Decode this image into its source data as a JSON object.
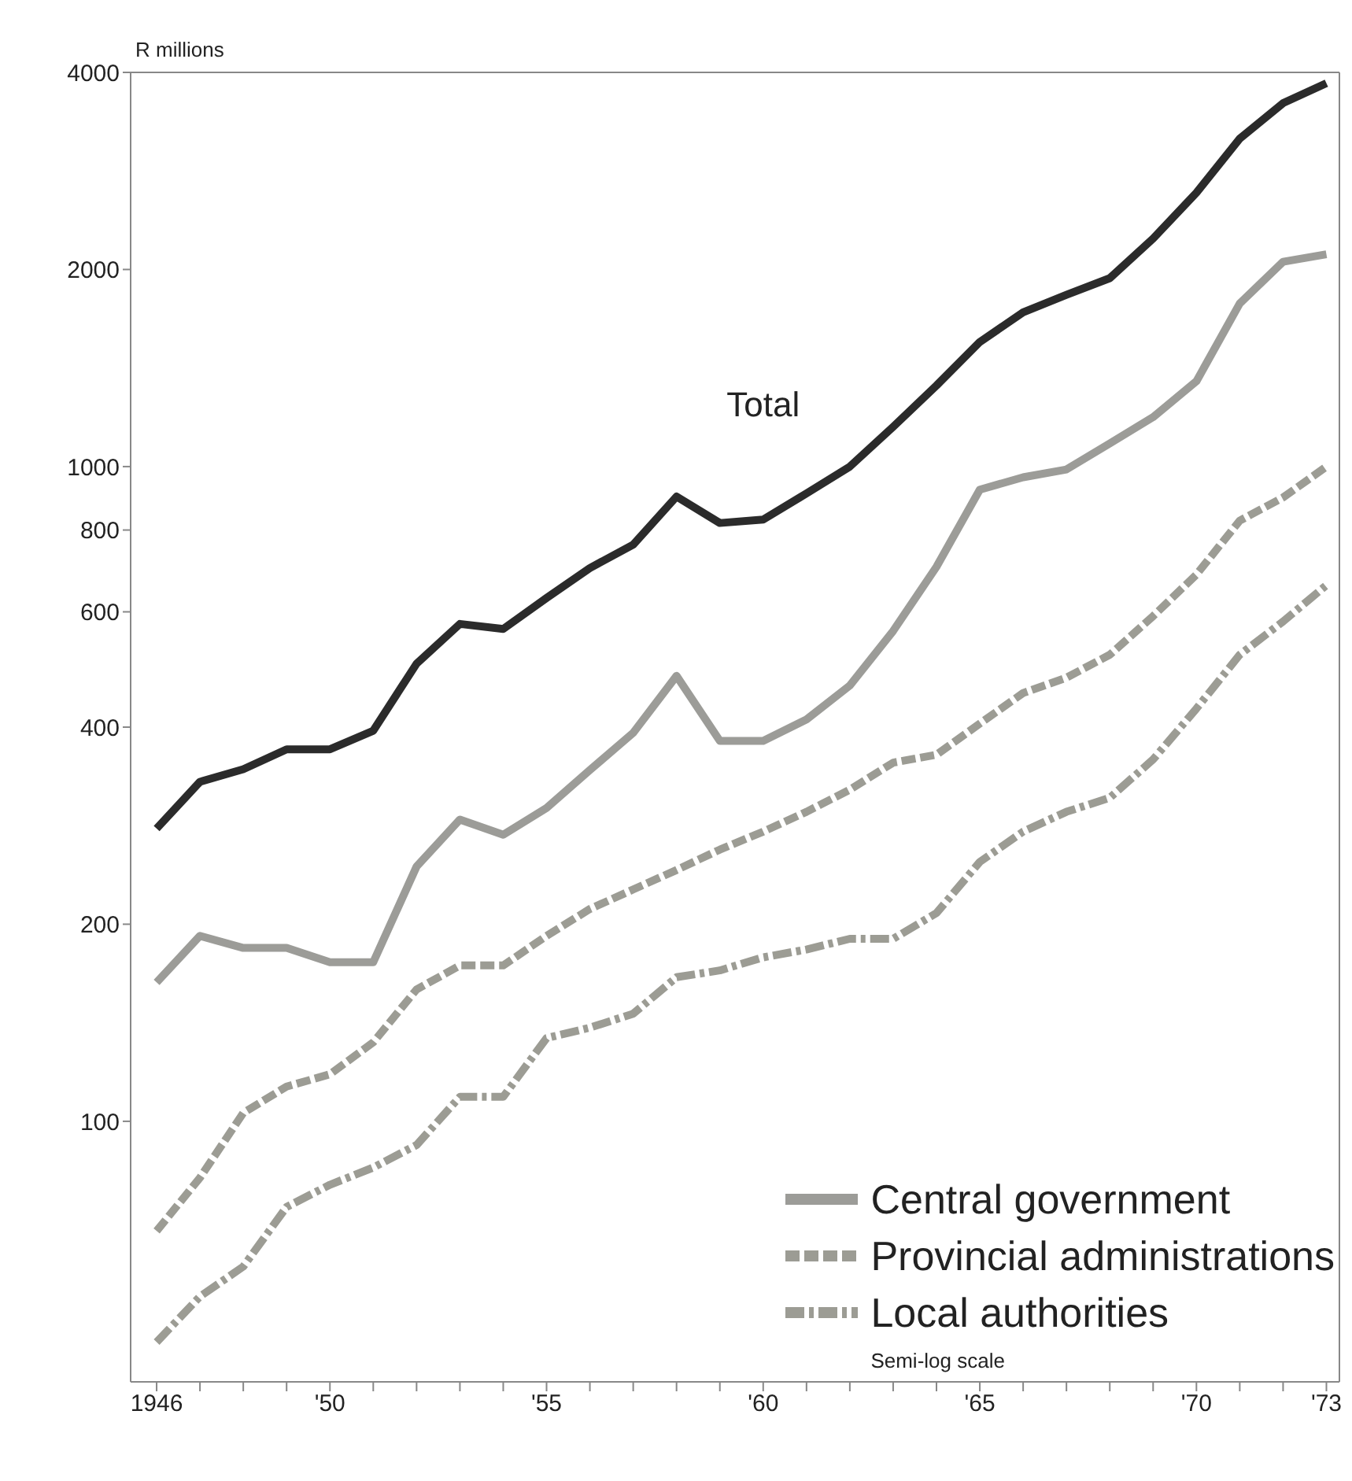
{
  "chart_data": {
    "type": "line",
    "ylabel": "R millions",
    "x": [
      1946,
      1947,
      1948,
      1949,
      1950,
      1951,
      1952,
      1953,
      1954,
      1955,
      1956,
      1957,
      1958,
      1959,
      1960,
      1961,
      1962,
      1963,
      1964,
      1965,
      1966,
      1967,
      1968,
      1969,
      1970,
      1971,
      1972,
      1973
    ],
    "series": [
      {
        "name": "Total",
        "color": "#2b2b2b",
        "line_style": "solid",
        "values": [
          280,
          330,
          345,
          370,
          370,
          395,
          500,
          575,
          565,
          630,
          700,
          760,
          900,
          820,
          830,
          910,
          1000,
          1150,
          1330,
          1550,
          1720,
          1830,
          1940,
          2230,
          2620,
          3170,
          3590,
          3850
        ]
      },
      {
        "name": "Central government",
        "color": "#9c9c98",
        "line_style": "solid",
        "values": [
          163,
          192,
          184,
          184,
          175,
          175,
          245,
          289,
          274,
          301,
          344,
          392,
          479,
          381,
          381,
          411,
          463,
          561,
          703,
          922,
          963,
          990,
          1085,
          1190,
          1350,
          1775,
          2055,
          2110
        ]
      },
      {
        "name": "Provincial administrations",
        "color": "#9c9c94",
        "line_style": "dashed",
        "values": [
          68,
          82,
          103,
          113,
          118,
          132,
          159,
          173,
          173,
          192,
          211,
          226,
          242,
          260,
          277,
          297,
          321,
          353,
          363,
          405,
          451,
          476,
          516,
          591,
          684,
          827,
          897,
          1000
        ]
      },
      {
        "name": "Local authorities",
        "color": "#9c9c94",
        "line_style": "dashdot",
        "values": [
          46,
          54,
          60,
          74,
          80,
          85,
          92,
          109,
          109,
          134,
          139,
          146,
          166,
          170,
          178,
          183,
          190,
          190,
          208,
          249,
          277,
          297,
          312,
          357,
          427,
          516,
          580,
          659
        ]
      }
    ],
    "log": "y",
    "ylim": [
      40,
      4000
    ],
    "yticks": [
      100,
      200,
      400,
      600,
      800,
      1000,
      2000,
      4000
    ],
    "xlim": [
      1945.4,
      1973.3
    ],
    "xticks": [
      1946,
      {
        "value": 1947,
        "label": null
      },
      {
        "value": 1948,
        "label": null
      },
      {
        "value": 1949,
        "label": null
      },
      {
        "value": 1950,
        "label": "'50"
      },
      {
        "value": 1951,
        "label": null
      },
      {
        "value": 1952,
        "label": null
      },
      {
        "value": 1953,
        "label": null
      },
      {
        "value": 1954,
        "label": null
      },
      {
        "value": 1955,
        "label": "'55"
      },
      {
        "value": 1956,
        "label": null
      },
      {
        "value": 1957,
        "label": null
      },
      {
        "value": 1958,
        "label": null
      },
      {
        "value": 1959,
        "label": null
      },
      {
        "value": 1960,
        "label": "'60"
      },
      {
        "value": 1961,
        "label": null
      },
      {
        "value": 1962,
        "label": null
      },
      {
        "value": 1963,
        "label": null
      },
      {
        "value": 1964,
        "label": null
      },
      {
        "value": 1965,
        "label": "'65"
      },
      {
        "value": 1966,
        "label": null
      },
      {
        "value": 1967,
        "label": null
      },
      {
        "value": 1968,
        "label": null
      },
      {
        "value": 1969,
        "label": null
      },
      {
        "value": 1970,
        "label": "'70"
      },
      {
        "value": 1971,
        "label": null
      },
      {
        "value": 1972,
        "label": null
      },
      {
        "value": 1973,
        "label": "'73"
      }
    ],
    "legend": "bottom right",
    "marker": "none",
    "annotations": [
      "Semi-log scale"
    ]
  }
}
